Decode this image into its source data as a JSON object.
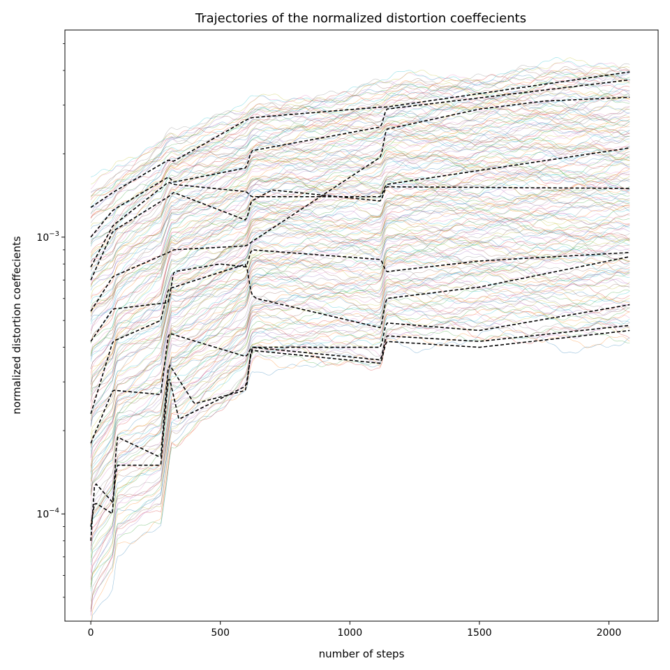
{
  "chart_data": {
    "type": "line",
    "title": "Trajectories of the normalized distortion coeffecients",
    "xlabel": "number of steps",
    "ylabel": "normalized distortion coeffecients",
    "xlim": [
      -100,
      2190
    ],
    "ylim": [
      4.1e-05,
      0.0056
    ],
    "yscale": "log",
    "grid": false,
    "x_ticks": [
      0,
      500,
      1000,
      1500,
      2000
    ],
    "x_tick_labels": [
      "0",
      "500",
      "1000",
      "1500",
      "2000"
    ],
    "y_major_ticks": [
      0.0001,
      0.001
    ],
    "y_tick_labels": [
      {
        "base": "10",
        "exp": "−4"
      },
      {
        "base": "10",
        "exp": "−3"
      }
    ],
    "y_minor_ticks": [
      5e-05,
      6e-05,
      7e-05,
      8e-05,
      9e-05,
      0.0002,
      0.0003,
      0.0004,
      0.0005,
      0.0006,
      0.0007,
      0.0008,
      0.0009,
      0.002,
      0.003,
      0.004,
      0.005
    ],
    "x_range": [
      0,
      2080
    ],
    "envelope": {
      "x": [
        0,
        5,
        85,
        100,
        270,
        290,
        310,
        330,
        600,
        620,
        640,
        1120,
        1140,
        1200,
        2080
      ],
      "upper": [
        0.00155,
        0.00156,
        0.0017,
        0.00178,
        0.00232,
        0.00245,
        0.0025,
        0.00248,
        0.00288,
        0.003,
        0.00305,
        0.0036,
        0.0036,
        0.0037,
        0.0043
      ],
      "lower": [
        3.8e-05,
        4.3e-05,
        5.8e-05,
        7.5e-05,
        8.8e-05,
        0.00012,
        0.00017,
        0.00017,
        0.00028,
        0.00034,
        0.00035,
        0.00033,
        0.00042,
        0.00042,
        0.00041
      ]
    },
    "thin_series_count": 170,
    "thin_series_colors": [
      "#1f77b4",
      "#ff7f0e",
      "#2ca02c",
      "#d62728",
      "#9467bd",
      "#8c564b",
      "#e377c2",
      "#7f7f7f",
      "#bcbd22",
      "#17becf"
    ],
    "highlight_color": "#000000",
    "highlight_series": [
      {
        "x": [
          0,
          85,
          300,
          320,
          600,
          620,
          1120,
          1140,
          2080
        ],
        "y": [
          0.00128,
          0.00145,
          0.0019,
          0.00188,
          0.00265,
          0.0027,
          0.00295,
          0.00295,
          0.00395
        ]
      },
      {
        "x": [
          0,
          85,
          300,
          320,
          600,
          620,
          1120,
          1140,
          2080
        ],
        "y": [
          0.001,
          0.00125,
          0.00165,
          0.00158,
          0.00178,
          0.00205,
          0.0025,
          0.0029,
          0.0037
        ]
      },
      {
        "x": [
          0,
          85,
          300,
          320,
          600,
          620,
          1120,
          1140,
          2080
        ],
        "y": [
          0.00078,
          0.0011,
          0.00158,
          0.00155,
          0.00146,
          0.0014,
          0.0014,
          0.00155,
          0.0021
        ]
      },
      {
        "x": [
          0,
          85,
          300,
          320,
          600,
          620,
          700,
          1120,
          1140,
          2080
        ],
        "y": [
          0.0007,
          0.00105,
          0.0014,
          0.00145,
          0.00115,
          0.00135,
          0.00148,
          0.00135,
          0.00152,
          0.0015
        ]
      },
      {
        "x": [
          0,
          85,
          300,
          320,
          600,
          620,
          1120,
          1140,
          1500,
          1750,
          2080
        ],
        "y": [
          0.00054,
          0.00072,
          0.00088,
          0.0009,
          0.00093,
          0.00096,
          0.00195,
          0.00245,
          0.0029,
          0.0031,
          0.0032
        ]
      },
      {
        "x": [
          0,
          85,
          300,
          320,
          500,
          600,
          620,
          1120,
          1140,
          1500,
          2080
        ],
        "y": [
          0.00042,
          0.00055,
          0.00058,
          0.00075,
          0.0008,
          0.00078,
          0.0009,
          0.00083,
          0.00075,
          0.00082,
          0.00088
        ]
      },
      {
        "x": [
          0,
          85,
          270,
          300,
          600,
          620,
          640,
          1120,
          1140,
          1500,
          2080
        ],
        "y": [
          0.00023,
          0.00042,
          0.0005,
          0.00065,
          0.0008,
          0.00062,
          0.0006,
          0.00047,
          0.0006,
          0.00066,
          0.00085
        ]
      },
      {
        "x": [
          0,
          85,
          270,
          300,
          600,
          620,
          1120,
          1140,
          1500,
          2080
        ],
        "y": [
          0.00018,
          0.00028,
          0.00027,
          0.00045,
          0.00037,
          0.0004,
          0.0004,
          0.00049,
          0.00046,
          0.00057
        ]
      },
      {
        "x": [
          0,
          15,
          85,
          100,
          270,
          300,
          400,
          600,
          620,
          1120,
          1140,
          1500,
          2080
        ],
        "y": [
          9e-05,
          0.00011,
          0.0001,
          0.00019,
          0.00016,
          0.00035,
          0.00025,
          0.00028,
          0.0004,
          0.00036,
          0.00044,
          0.00042,
          0.00048
        ]
      },
      {
        "x": [
          0,
          15,
          85,
          100,
          270,
          300,
          340,
          600,
          620,
          1120,
          1140,
          1500,
          2080
        ],
        "y": [
          8e-05,
          0.00013,
          0.00011,
          0.00015,
          0.00015,
          0.00032,
          0.00022,
          0.00029,
          0.00039,
          0.00035,
          0.00042,
          0.0004,
          0.00046
        ]
      }
    ]
  }
}
